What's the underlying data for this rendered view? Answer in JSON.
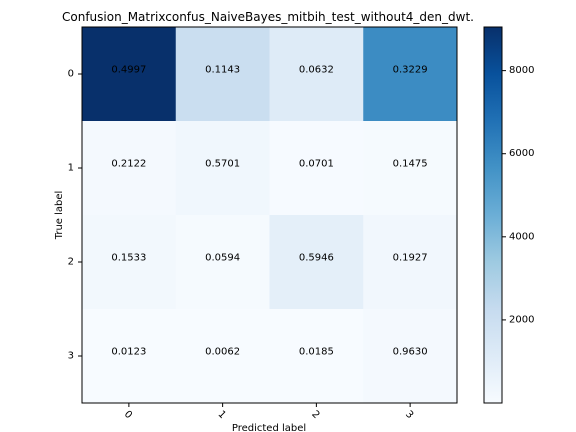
{
  "chart_data": {
    "type": "heatmap",
    "title": "Confusion_Matrixconfus_NaiveBayes_mitbih_test_without4_den_dwt.",
    "xlabel": "Predicted label",
    "ylabel": "True label",
    "x_tick_labels": [
      "0",
      "1",
      "2",
      "3"
    ],
    "y_tick_labels": [
      "0",
      "1",
      "2",
      "3"
    ],
    "cell_labels": [
      [
        "0.4997",
        "0.1143",
        "0.0632",
        "0.3229"
      ],
      [
        "0.2122",
        "0.5701",
        "0.0701",
        "0.1475"
      ],
      [
        "0.1533",
        "0.0594",
        "0.5946",
        "0.1927"
      ],
      [
        "0.0123",
        "0.0062",
        "0.0185",
        "0.9630"
      ]
    ],
    "counts": [
      [
        9050,
        2070,
        1145,
        5850
      ],
      [
        118,
        317,
        39,
        82
      ],
      [
        222,
        86,
        861,
        279
      ],
      [
        2,
        1,
        3,
        156
      ]
    ],
    "colorbar": {
      "range": [
        0,
        9050
      ],
      "ticks": [
        2000,
        4000,
        6000,
        8000
      ],
      "tick_labels": [
        "2000",
        "4000",
        "6000",
        "8000"
      ],
      "colormap": "Blues",
      "low_color": "#f7fbff",
      "high_color": "#08306b"
    },
    "grid": false,
    "legend": "colorbar-right"
  }
}
